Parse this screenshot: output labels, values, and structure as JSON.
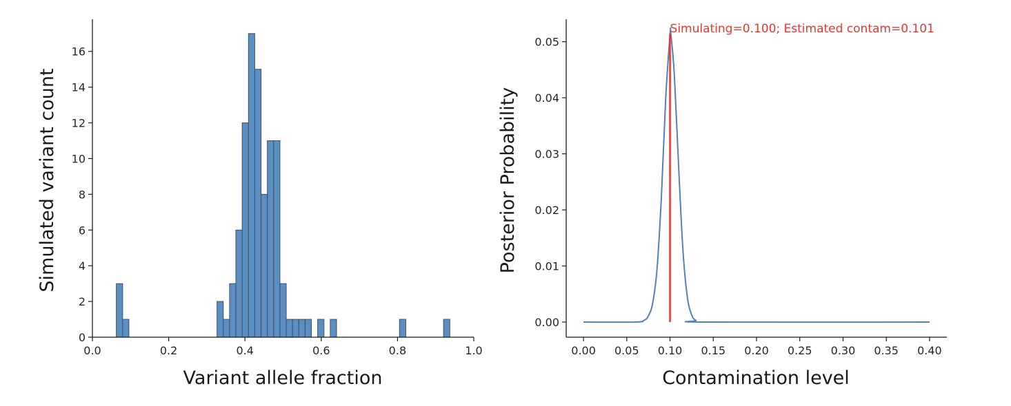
{
  "chart_data": [
    {
      "type": "bar",
      "subtype": "histogram",
      "xlabel": "Variant allele fraction",
      "ylabel": "Simulated variant count",
      "xlim": [
        0.0,
        1.0
      ],
      "ylim": [
        0,
        17.8
      ],
      "xticks": [
        "0.0",
        "0.2",
        "0.4",
        "0.6",
        "0.8",
        "1.0"
      ],
      "yticks": [
        "0",
        "2",
        "4",
        "6",
        "8",
        "10",
        "12",
        "14",
        "16"
      ],
      "bin_width": 0.0165,
      "bin_starts": [
        0.0627,
        0.0792,
        0.3267,
        0.3432,
        0.3597,
        0.3762,
        0.3927,
        0.4092,
        0.4257,
        0.4422,
        0.4587,
        0.4752,
        0.4917,
        0.5082,
        0.5247,
        0.5412,
        0.5577,
        0.5907,
        0.6237,
        0.8052,
        0.9207
      ],
      "counts": [
        3,
        1,
        2,
        1,
        3,
        6,
        12,
        17,
        15,
        8,
        11,
        11,
        3,
        1,
        1,
        1,
        1,
        1,
        1,
        1,
        1
      ],
      "grid": false,
      "bar_color": "#5b8fc4",
      "edge_color": "#3f4e61"
    },
    {
      "type": "line",
      "xlabel": "Contamination level",
      "ylabel": "Posterior Probability",
      "xlim": [
        -0.02,
        0.42
      ],
      "ylim": [
        -0.0027,
        0.054
      ],
      "xticks": [
        "0.00",
        "0.05",
        "0.10",
        "0.15",
        "0.20",
        "0.25",
        "0.30",
        "0.35",
        "0.40"
      ],
      "yticks": [
        "0.00",
        "0.01",
        "0.02",
        "0.03",
        "0.04",
        "0.05"
      ],
      "series": [
        {
          "x": [
            0.0,
            0.06,
            0.07,
            0.075,
            0.08,
            0.085,
            0.09,
            0.095,
            0.1,
            0.101,
            0.105,
            0.11,
            0.115,
            0.12,
            0.125,
            0.13,
            0.14,
            0.4
          ],
          "y": [
            0.0,
            0.0,
            0.0003,
            0.0011,
            0.0034,
            0.0095,
            0.0222,
            0.0398,
            0.0512,
            0.0513,
            0.0441,
            0.0276,
            0.0127,
            0.0045,
            0.0013,
            0.0003,
            0.0,
            0.0
          ],
          "color": "#4f81bd"
        }
      ],
      "vline": {
        "x": 0.1,
        "y_from": 0.0,
        "y_to": 0.0514,
        "color": "#e8352f"
      },
      "annotation": {
        "text": "Simulating=0.100; Estimated contam=0.101",
        "x": 0.1,
        "y": 0.0514,
        "color": "#e8352f"
      },
      "grid": false
    }
  ]
}
